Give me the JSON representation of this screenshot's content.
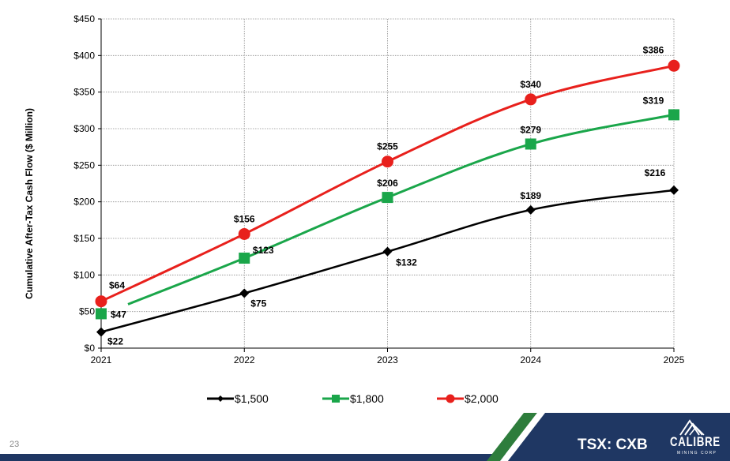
{
  "chart_data": {
    "type": "line",
    "x": [
      "2021",
      "2022",
      "2023",
      "2024",
      "2025"
    ],
    "ylabel": "Cumulative After-Tax Cash Flow ($ Million)",
    "ylim": [
      0,
      450
    ],
    "y_ticks": [
      "$0",
      "$50",
      "$100",
      "$150",
      "$200",
      "$250",
      "$300",
      "$350",
      "$400",
      "$450"
    ],
    "grid": true,
    "legend_position": "bottom",
    "series": [
      {
        "name": "$1,500",
        "color": "#000000",
        "marker": "diamond",
        "values": [
          22,
          75,
          132,
          189,
          216
        ],
        "labels": [
          "$22",
          "$75",
          "$132",
          "$189",
          "$216"
        ]
      },
      {
        "name": "$1,800",
        "color": "#1aa64a",
        "marker": "square",
        "values": [
          47,
          123,
          206,
          279,
          319
        ],
        "labels": [
          "$47",
          "$123",
          "$206",
          "$279",
          "$319"
        ]
      },
      {
        "name": "$2,000",
        "color": "#e8201c",
        "marker": "circle",
        "values": [
          64,
          156,
          255,
          340,
          386
        ],
        "labels": [
          "$64",
          "$156",
          "$255",
          "$340",
          "$386"
        ]
      }
    ]
  },
  "footer": {
    "slide_number": "23",
    "ticker": "TSX: CXB",
    "brand_name": "CALIBRE",
    "brand_sub": "MINING CORP",
    "logo_icon": "mountain-logo-icon",
    "bar_color": "#1f3763",
    "stripe_color": "#2e7d3c"
  }
}
